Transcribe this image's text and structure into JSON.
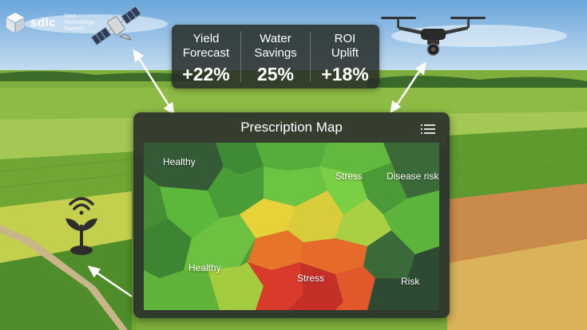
{
  "brand": {
    "name": "sdlc",
    "tagline_line1": "Your",
    "tagline_line2": "Technology",
    "tagline_line3": "Partner"
  },
  "kpis": [
    {
      "label_line1": "Yield",
      "label_line2": "Forecast",
      "value": "+22%"
    },
    {
      "label_line1": "Water",
      "label_line2": "Savings",
      "value": "25%"
    },
    {
      "label_line1": "ROI",
      "label_line2": "Uplift",
      "value": "+18%"
    }
  ],
  "map": {
    "title": "Prescription Map",
    "zones": [
      {
        "label": "Healthy"
      },
      {
        "label": "Stress"
      },
      {
        "label": "Disease risk"
      },
      {
        "label": "Healthy"
      },
      {
        "label": "Stress"
      },
      {
        "label": "Risk"
      }
    ]
  },
  "icons": {
    "satellite": "satellite-icon",
    "drone": "drone-icon",
    "sensor": "soil-sensor-icon",
    "menu": "menu-icon"
  },
  "colors": {
    "panel": "#262c28",
    "healthy": "#5cb83a",
    "stress_yellow": "#e8d23a",
    "stress_orange": "#e8742a",
    "stress_red": "#c9322a",
    "risk_dark": "#2f4a32"
  }
}
